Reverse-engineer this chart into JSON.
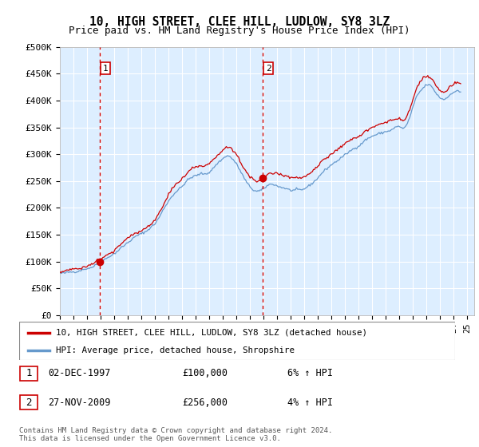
{
  "title": "10, HIGH STREET, CLEE HILL, LUDLOW, SY8 3LZ",
  "subtitle": "Price paid vs. HM Land Registry's House Price Index (HPI)",
  "title_fontsize": 10.5,
  "subtitle_fontsize": 9,
  "background_color": "#ffffff",
  "plot_bg_color": "#ddeeff",
  "grid_color": "#c8d8e8",
  "ylabel_ticks": [
    "£0",
    "£50K",
    "£100K",
    "£150K",
    "£200K",
    "£250K",
    "£300K",
    "£350K",
    "£400K",
    "£450K",
    "£500K"
  ],
  "ytick_values": [
    0,
    50000,
    100000,
    150000,
    200000,
    250000,
    300000,
    350000,
    400000,
    450000,
    500000
  ],
  "ylim": [
    0,
    500000
  ],
  "xlim_start": 1995.0,
  "xlim_end": 2025.5,
  "hpi_line_color": "#6699cc",
  "price_line_color": "#cc0000",
  "sale1_x": 1997.92,
  "sale1_y": 100000,
  "sale2_x": 2009.9,
  "sale2_y": 256000,
  "annotation1_label": "1",
  "annotation2_label": "2",
  "legend_label_price": "10, HIGH STREET, CLEE HILL, LUDLOW, SY8 3LZ (detached house)",
  "legend_label_hpi": "HPI: Average price, detached house, Shropshire",
  "table_rows": [
    {
      "num": "1",
      "date": "02-DEC-1997",
      "price": "£100,000",
      "change": "6% ↑ HPI"
    },
    {
      "num": "2",
      "date": "27-NOV-2009",
      "price": "£256,000",
      "change": "4% ↑ HPI"
    }
  ],
  "footer": "Contains HM Land Registry data © Crown copyright and database right 2024.\nThis data is licensed under the Open Government Licence v3.0.",
  "dashed_line_color": "#cc0000"
}
